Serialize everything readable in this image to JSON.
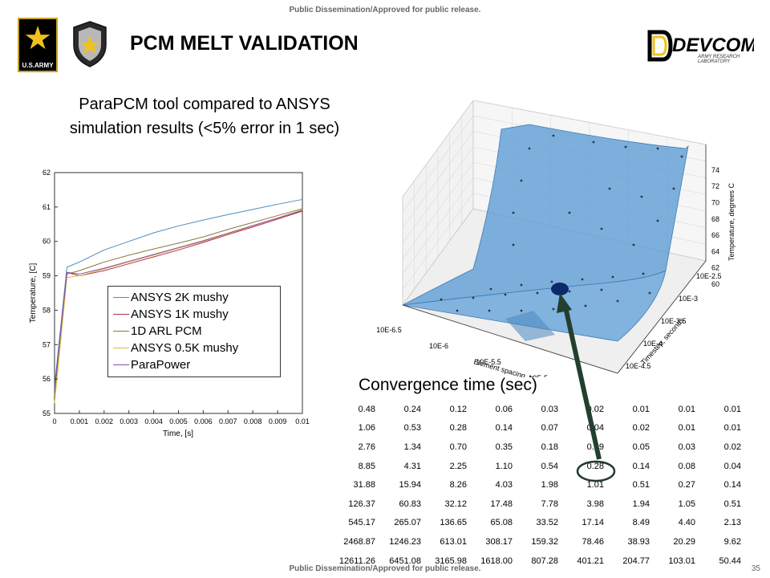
{
  "header": {
    "banner_top": "Public Dissemination/Approved for public release.",
    "title": "PCM MELT VALIDATION",
    "logos": {
      "army_text": "U.S.ARMY",
      "devcom": "DEVCOM",
      "devcom_sub1": "ARMY RESEARCH",
      "devcom_sub2": "LABORATORY"
    }
  },
  "left": {
    "subtitle_line1": "ParaPCM  tool compared to ANSYS",
    "subtitle_line2": "simulation results (<5% error in 1 sec)"
  },
  "footer": {
    "banner_bottom": "Public Dissemination/Approved for public release.",
    "page_number": "35"
  },
  "convergence": {
    "title": "Convergence time (sec)",
    "rows": [
      [
        "0.48",
        "0.24",
        "0.12",
        "0.06",
        "0.03",
        "0.02",
        "0.01",
        "0.01",
        "0.01"
      ],
      [
        "1.06",
        "0.53",
        "0.28",
        "0.14",
        "0.07",
        "0.04",
        "0.02",
        "0.01",
        "0.01"
      ],
      [
        "2.76",
        "1.34",
        "0.70",
        "0.35",
        "0.18",
        "0.09",
        "0.05",
        "0.03",
        "0.02"
      ],
      [
        "8.85",
        "4.31",
        "2.25",
        "1.10",
        "0.54",
        "0.28",
        "0.14",
        "0.08",
        "0.04"
      ],
      [
        "31.88",
        "15.94",
        "8.26",
        "4.03",
        "1.98",
        "1.01",
        "0.51",
        "0.27",
        "0.14"
      ],
      [
        "126.37",
        "60.83",
        "32.12",
        "17.48",
        "7.78",
        "3.98",
        "1.94",
        "1.05",
        "0.51"
      ],
      [
        "545.17",
        "265.07",
        "136.65",
        "65.08",
        "33.52",
        "17.14",
        "8.49",
        "4.40",
        "2.13"
      ],
      [
        "2468.87",
        "1246.23",
        "613.01",
        "308.17",
        "159.32",
        "78.46",
        "38.93",
        "20.29",
        "9.62"
      ],
      [
        "12611.26",
        "6451.08",
        "3165.98",
        "1618.00",
        "807.28",
        "401.21",
        "204.77",
        "103.01",
        "50.44"
      ]
    ]
  },
  "chart_data": [
    {
      "type": "line",
      "title": "",
      "xlabel": "Time, [s]",
      "ylabel": "Temperature, [C]",
      "xlim": [
        0,
        0.01
      ],
      "ylim": [
        55,
        62
      ],
      "x_ticks": [
        "0",
        "0.001",
        "0.002",
        "0.003",
        "0.004",
        "0.005",
        "0.006",
        "0.007",
        "0.008",
        "0.009",
        "0.01"
      ],
      "y_ticks": [
        "55",
        "56",
        "57",
        "58",
        "59",
        "60",
        "61",
        "62"
      ],
      "legend_position": "center-right",
      "x": [
        0,
        0.0005,
        0.001,
        0.002,
        0.003,
        0.004,
        0.005,
        0.006,
        0.007,
        0.008,
        0.009,
        0.01
      ],
      "series": [
        {
          "name": "ANSYS 2K mushy",
          "color": "#4a8ec2",
          "values": [
            55.8,
            59.25,
            59.4,
            59.75,
            60.0,
            60.25,
            60.45,
            60.62,
            60.78,
            60.93,
            61.08,
            61.22
          ]
        },
        {
          "name": "ANSYS 1K mushy",
          "color": "#b3344b",
          "values": [
            55.6,
            59.1,
            59.0,
            59.15,
            59.35,
            59.55,
            59.75,
            59.97,
            60.2,
            60.42,
            60.65,
            60.88
          ]
        },
        {
          "name": "1D ARL  PCM",
          "color": "#8a7a3a",
          "values": [
            55.5,
            59.05,
            59.15,
            59.4,
            59.6,
            59.78,
            59.95,
            60.13,
            60.35,
            60.55,
            60.75,
            60.95
          ]
        },
        {
          "name": "ANSYS 0.5K mushy",
          "color": "#d8c03a",
          "values": [
            55.3,
            58.95,
            59.0,
            59.2,
            59.4,
            59.6,
            59.8,
            60.0,
            60.22,
            60.45,
            60.68,
            60.92
          ]
        },
        {
          "name": "ParaPower",
          "color": "#8c4aa8",
          "values": [
            55.7,
            59.1,
            59.05,
            59.22,
            59.42,
            59.62,
            59.82,
            60.02,
            60.24,
            60.46,
            60.68,
            60.9
          ]
        }
      ]
    },
    {
      "type": "surface3d",
      "title": "",
      "xlabel": "Element spacing, meters",
      "ylabel": "Timestep, seconds",
      "zlabel": "Temperature, degrees C",
      "x_ticks": [
        "10E-6.5",
        "10E-6",
        "10E-5.5",
        "10E-5",
        "10E-4.5"
      ],
      "y_ticks": [
        "10E-4.5",
        "10E-4",
        "10E-3.5",
        "10E-3",
        "10E-2.5"
      ],
      "z_ticks": [
        "60",
        "62",
        "64",
        "66",
        "68",
        "70",
        "72",
        "74"
      ],
      "zlim": [
        60,
        74
      ],
      "color": "#5b9bd5",
      "highlight_color": "#0b2a6b"
    }
  ]
}
